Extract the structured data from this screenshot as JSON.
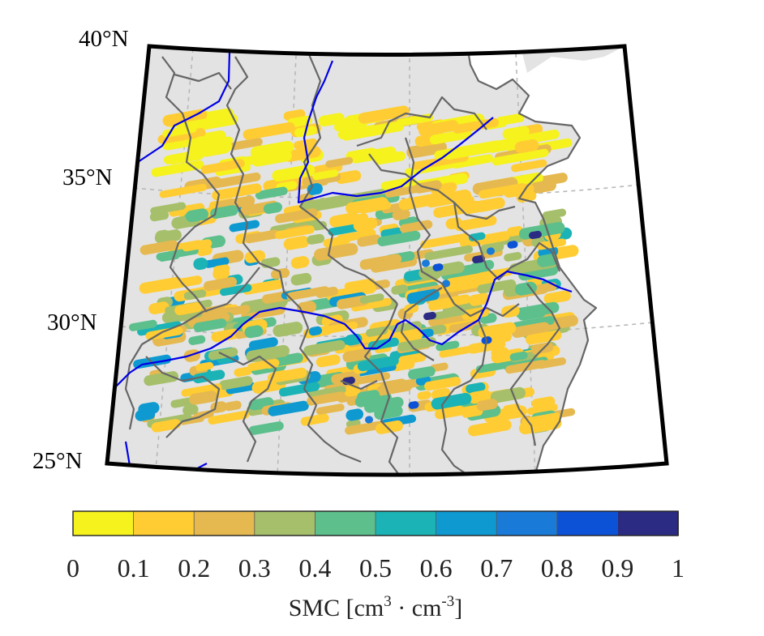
{
  "map": {
    "latitude_labels": [
      {
        "key": "lat40",
        "text": "40°N"
      },
      {
        "key": "lat35",
        "text": "35°N"
      },
      {
        "key": "lat30",
        "text": "30°N"
      },
      {
        "key": "lat25",
        "text": "25°N"
      }
    ],
    "colors": {
      "land": "#e3e3e3",
      "ocean": "#ffffff",
      "frame": "#000000",
      "province_border": "#666666",
      "river": "#0000e6",
      "graticule": "#b8b8b8"
    },
    "river_icon": "river-line",
    "border_icon": "province-border-line"
  },
  "colorbar": {
    "title": {
      "base": "SMC [cm",
      "exp1": "3",
      "mid": " · cm",
      "exp2": "-3",
      "end": "]"
    },
    "ticks": [
      "0",
      "0.1",
      "0.2",
      "0.3",
      "0.4",
      "0.5",
      "0.6",
      "0.7",
      "0.8",
      "0.9",
      "1"
    ],
    "range": [
      0,
      1
    ],
    "colors": [
      "#f5f21e",
      "#ffcc33",
      "#e5b94f",
      "#a6bf6a",
      "#5cbf8c",
      "#1bb3b5",
      "#0e9ad0",
      "#1a7ad8",
      "#0c52d6",
      "#2b2b83"
    ]
  }
}
